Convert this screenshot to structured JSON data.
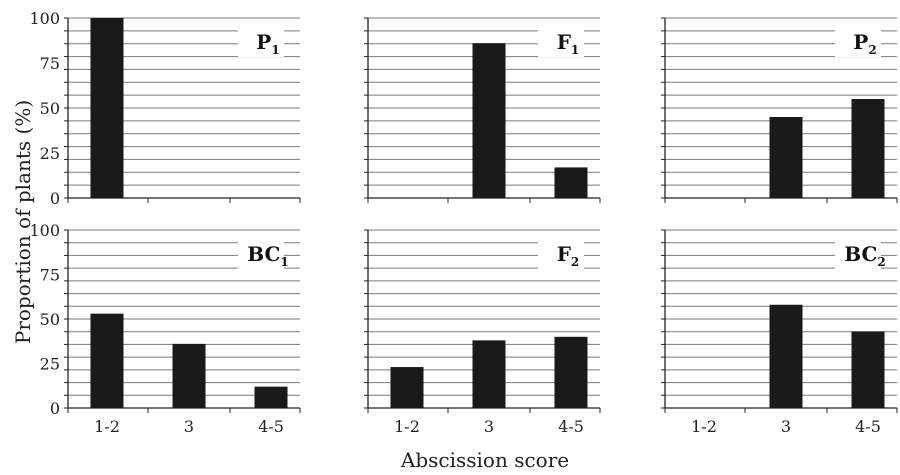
{
  "chart_data": {
    "type": "bar",
    "xlabel": "Abscission score",
    "ylabel": "Proportion of plants (%)",
    "ylim": [
      0,
      100
    ],
    "yticks": [
      "0",
      "25",
      "50",
      "75",
      "100"
    ],
    "categories": [
      "1-2",
      "3",
      "4-5"
    ],
    "bar_color": "#1a1a1a",
    "grid_color": "#7a7a7a",
    "grid": true,
    "panels": [
      {
        "title": "P",
        "subscript": "1",
        "values": [
          100,
          0,
          0
        ]
      },
      {
        "title": "F",
        "subscript": "1",
        "values": [
          0,
          86,
          17
        ]
      },
      {
        "title": "P",
        "subscript": "2",
        "values": [
          0,
          45,
          55
        ]
      },
      {
        "title": "BC",
        "subscript": "1",
        "values": [
          53,
          36,
          12
        ]
      },
      {
        "title": "F",
        "subscript": "2",
        "values": [
          23,
          38,
          40
        ]
      },
      {
        "title": "BC",
        "subscript": "2",
        "values": [
          0,
          58,
          43
        ]
      }
    ]
  }
}
